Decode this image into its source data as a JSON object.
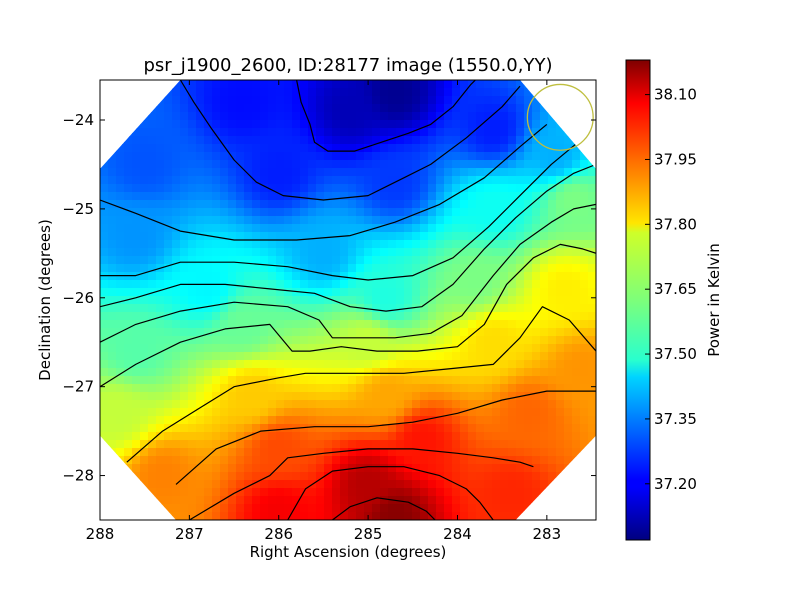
{
  "chart_data": {
    "type": "heatmap",
    "title": "psr_j1900_2600, ID:28177 image (1550.0,YY)",
    "xlabel": "Right Ascension (degrees)",
    "ylabel": "Declination (degrees)",
    "xlim": [
      288,
      282.45
    ],
    "ylim": [
      -28.5,
      -23.55
    ],
    "x_ticks": [
      288,
      287,
      286,
      285,
      284,
      283
    ],
    "y_ticks": [
      -24,
      -25,
      -26,
      -27,
      -28
    ],
    "colorbar": {
      "label": "Power in Kelvin",
      "range": [
        37.07,
        38.18
      ],
      "ticks": [
        38.1,
        37.95,
        37.8,
        37.65,
        37.5,
        37.35,
        37.2
      ],
      "tick_labels": [
        "38.10",
        "37.95",
        "37.80",
        "37.65",
        "37.50",
        "37.35",
        "37.20"
      ],
      "colormap": "jet"
    },
    "beam_circle": {
      "ra": 282.85,
      "dec": -23.97,
      "radius_deg": 0.37,
      "color": "#bfbf3f"
    },
    "field_polygon": [
      [
        287.1,
        -23.55
      ],
      [
        283.3,
        -23.55
      ],
      [
        282.45,
        -24.55
      ],
      [
        282.45,
        -27.55
      ],
      [
        283.35,
        -28.5
      ],
      [
        287.15,
        -28.5
      ],
      [
        288,
        -27.55
      ],
      [
        288,
        -24.55
      ]
    ],
    "contours": [
      [
        [
          285.8,
          -23.55
        ],
        [
          285.75,
          -23.8
        ],
        [
          285.65,
          -24.05
        ],
        [
          285.6,
          -24.25
        ],
        [
          285.45,
          -24.35
        ],
        [
          285.15,
          -24.35
        ],
        [
          284.85,
          -24.25
        ],
        [
          284.55,
          -24.15
        ],
        [
          284.3,
          -24.05
        ],
        [
          284.05,
          -23.85
        ],
        [
          283.85,
          -23.6
        ],
        [
          283.8,
          -23.55
        ]
      ],
      [
        [
          287.1,
          -23.55
        ],
        [
          286.95,
          -23.8
        ],
        [
          286.75,
          -24.1
        ],
        [
          286.5,
          -24.45
        ],
        [
          286.25,
          -24.7
        ],
        [
          285.95,
          -24.85
        ],
        [
          285.5,
          -24.9
        ],
        [
          285.0,
          -24.85
        ],
        [
          284.6,
          -24.65
        ],
        [
          284.3,
          -24.5
        ],
        [
          283.9,
          -24.2
        ],
        [
          283.5,
          -23.85
        ],
        [
          283.3,
          -23.62
        ]
      ],
      [
        [
          288.0,
          -24.9
        ],
        [
          287.6,
          -25.05
        ],
        [
          287.1,
          -25.25
        ],
        [
          286.5,
          -25.35
        ],
        [
          285.8,
          -25.35
        ],
        [
          285.2,
          -25.3
        ],
        [
          284.7,
          -25.15
        ],
        [
          284.2,
          -24.95
        ],
        [
          283.7,
          -24.65
        ],
        [
          283.3,
          -24.3
        ],
        [
          283.0,
          -24.05
        ]
      ],
      [
        [
          288.0,
          -25.75
        ],
        [
          287.6,
          -25.75
        ],
        [
          287.1,
          -25.6
        ],
        [
          286.5,
          -25.6
        ],
        [
          285.9,
          -25.65
        ],
        [
          285.4,
          -25.75
        ],
        [
          285.0,
          -25.8
        ],
        [
          284.5,
          -25.75
        ],
        [
          284.05,
          -25.55
        ],
        [
          283.65,
          -25.2
        ],
        [
          283.3,
          -24.85
        ],
        [
          282.95,
          -24.5
        ],
        [
          282.65,
          -24.25
        ]
      ],
      [
        [
          288.0,
          -26.1
        ],
        [
          287.6,
          -26.0
        ],
        [
          287.1,
          -25.85
        ],
        [
          286.6,
          -25.85
        ],
        [
          286.1,
          -25.9
        ],
        [
          285.6,
          -25.95
        ],
        [
          285.2,
          -26.1
        ],
        [
          284.8,
          -26.15
        ],
        [
          284.4,
          -26.1
        ],
        [
          284.05,
          -25.85
        ],
        [
          283.7,
          -25.45
        ],
        [
          283.35,
          -25.1
        ],
        [
          283.0,
          -24.8
        ],
        [
          282.7,
          -24.6
        ],
        [
          282.45,
          -24.5
        ]
      ],
      [
        [
          288.0,
          -26.5
        ],
        [
          287.6,
          -26.3
        ],
        [
          287.1,
          -26.15
        ],
        [
          286.5,
          -26.05
        ],
        [
          285.9,
          -26.1
        ],
        [
          285.55,
          -26.25
        ],
        [
          285.4,
          -26.45
        ],
        [
          285.1,
          -26.45
        ],
        [
          284.7,
          -26.45
        ],
        [
          284.3,
          -26.4
        ],
        [
          283.95,
          -26.2
        ],
        [
          283.6,
          -25.75
        ],
        [
          283.3,
          -25.4
        ],
        [
          282.95,
          -25.15
        ],
        [
          282.7,
          -25.0
        ],
        [
          282.45,
          -24.95
        ]
      ],
      [
        [
          288.0,
          -27.0
        ],
        [
          287.6,
          -26.75
        ],
        [
          287.1,
          -26.5
        ],
        [
          286.6,
          -26.35
        ],
        [
          286.1,
          -26.3
        ],
        [
          285.85,
          -26.6
        ],
        [
          285.65,
          -26.6
        ],
        [
          285.3,
          -26.55
        ],
        [
          284.9,
          -26.6
        ],
        [
          284.45,
          -26.6
        ],
        [
          284.0,
          -26.55
        ],
        [
          283.7,
          -26.3
        ],
        [
          283.45,
          -25.85
        ],
        [
          283.15,
          -25.55
        ],
        [
          282.85,
          -25.4
        ],
        [
          282.6,
          -25.45
        ],
        [
          282.45,
          -25.5
        ]
      ],
      [
        [
          287.7,
          -27.85
        ],
        [
          287.3,
          -27.5
        ],
        [
          286.9,
          -27.25
        ],
        [
          286.5,
          -27.0
        ],
        [
          286.0,
          -26.9
        ],
        [
          285.7,
          -26.85
        ],
        [
          285.1,
          -26.85
        ],
        [
          284.6,
          -26.85
        ],
        [
          284.1,
          -26.8
        ],
        [
          283.6,
          -26.75
        ],
        [
          283.3,
          -26.45
        ],
        [
          283.05,
          -26.1
        ],
        [
          282.75,
          -26.25
        ],
        [
          282.45,
          -26.6
        ]
      ],
      [
        [
          287.15,
          -28.1
        ],
        [
          286.7,
          -27.7
        ],
        [
          286.2,
          -27.5
        ],
        [
          285.6,
          -27.45
        ],
        [
          285.0,
          -27.45
        ],
        [
          284.5,
          -27.4
        ],
        [
          284.0,
          -27.3
        ],
        [
          283.5,
          -27.15
        ],
        [
          283.0,
          -27.05
        ],
        [
          282.45,
          -27.05
        ]
      ],
      [
        [
          287.0,
          -28.5
        ],
        [
          286.5,
          -28.2
        ],
        [
          286.1,
          -28.0
        ],
        [
          285.9,
          -27.8
        ],
        [
          285.5,
          -27.75
        ],
        [
          285.0,
          -27.7
        ],
        [
          284.5,
          -27.7
        ],
        [
          284.0,
          -27.75
        ],
        [
          283.6,
          -27.8
        ],
        [
          283.3,
          -27.85
        ],
        [
          283.15,
          -27.9
        ]
      ],
      [
        [
          285.9,
          -28.5
        ],
        [
          285.7,
          -28.15
        ],
        [
          285.4,
          -27.95
        ],
        [
          285.0,
          -27.9
        ],
        [
          284.6,
          -27.9
        ],
        [
          284.2,
          -28.0
        ],
        [
          283.9,
          -28.15
        ],
        [
          283.75,
          -28.3
        ],
        [
          283.6,
          -28.5
        ]
      ],
      [
        [
          285.4,
          -28.5
        ],
        [
          285.2,
          -28.35
        ],
        [
          284.9,
          -28.25
        ],
        [
          284.55,
          -28.3
        ],
        [
          284.35,
          -28.4
        ],
        [
          284.25,
          -28.5
        ]
      ]
    ],
    "field_samples": [
      {
        "ra": 284.7,
        "dec": -23.7,
        "value": 37.09
      },
      {
        "ra": 285.2,
        "dec": -23.9,
        "value": 37.13
      },
      {
        "ra": 286.4,
        "dec": -23.8,
        "value": 37.22
      },
      {
        "ra": 287.5,
        "dec": -24.5,
        "value": 37.3
      },
      {
        "ra": 283.6,
        "dec": -24.1,
        "value": 37.24
      },
      {
        "ra": 282.9,
        "dec": -24.4,
        "value": 37.4
      },
      {
        "ra": 286.0,
        "dec": -24.6,
        "value": 37.24
      },
      {
        "ra": 284.7,
        "dec": -24.7,
        "value": 37.27
      },
      {
        "ra": 287.6,
        "dec": -25.3,
        "value": 37.37
      },
      {
        "ra": 285.5,
        "dec": -25.5,
        "value": 37.4
      },
      {
        "ra": 283.6,
        "dec": -25.0,
        "value": 37.5
      },
      {
        "ra": 282.7,
        "dec": -24.9,
        "value": 37.62
      },
      {
        "ra": 286.8,
        "dec": -25.9,
        "value": 37.48
      },
      {
        "ra": 284.8,
        "dec": -26.0,
        "value": 37.52
      },
      {
        "ra": 283.8,
        "dec": -25.8,
        "value": 37.62
      },
      {
        "ra": 282.8,
        "dec": -25.9,
        "value": 37.78
      },
      {
        "ra": 287.6,
        "dec": -26.6,
        "value": 37.58
      },
      {
        "ra": 286.4,
        "dec": -26.3,
        "value": 37.6
      },
      {
        "ra": 285.0,
        "dec": -26.5,
        "value": 37.7
      },
      {
        "ra": 283.6,
        "dec": -26.5,
        "value": 37.8
      },
      {
        "ra": 282.6,
        "dec": -26.8,
        "value": 37.88
      },
      {
        "ra": 287.8,
        "dec": -27.3,
        "value": 37.7
      },
      {
        "ra": 286.3,
        "dec": -27.1,
        "value": 37.82
      },
      {
        "ra": 284.8,
        "dec": -27.1,
        "value": 37.86
      },
      {
        "ra": 283.2,
        "dec": -27.3,
        "value": 37.93
      },
      {
        "ra": 287.3,
        "dec": -28.0,
        "value": 37.9
      },
      {
        "ra": 286.0,
        "dec": -27.7,
        "value": 37.96
      },
      {
        "ra": 284.4,
        "dec": -27.6,
        "value": 38.02
      },
      {
        "ra": 283.4,
        "dec": -28.2,
        "value": 38.0
      },
      {
        "ra": 285.0,
        "dec": -28.1,
        "value": 38.12
      },
      {
        "ra": 284.7,
        "dec": -28.45,
        "value": 38.17
      },
      {
        "ra": 286.0,
        "dec": -28.4,
        "value": 38.05
      }
    ]
  }
}
